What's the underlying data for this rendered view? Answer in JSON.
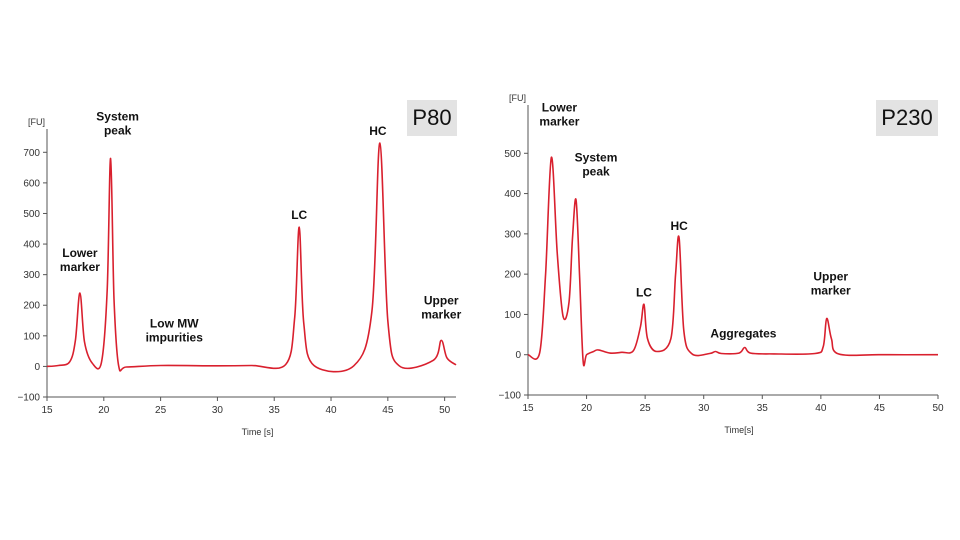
{
  "colors": {
    "trace": "#d9202e",
    "axis": "#555555",
    "tag_bg": "#e3e3e3"
  },
  "chart_data": [
    {
      "type": "line",
      "title": "P80",
      "xlabel": "Time [s]",
      "unit": "[FU]",
      "xlim": [
        15,
        51
      ],
      "ylim": [
        -100,
        750
      ],
      "xticks": [
        15,
        20,
        25,
        30,
        35,
        40,
        45,
        50
      ],
      "yticks": [
        -100,
        0,
        100,
        200,
        300,
        400,
        500,
        600,
        700
      ],
      "baseline": 3,
      "peaks": [
        {
          "x": 17.9,
          "y": 240,
          "w": 0.25
        },
        {
          "x": 20.6,
          "y": 680,
          "w": 0.2
        },
        {
          "x": 37.2,
          "y": 455,
          "w": 0.25
        },
        {
          "x": 44.3,
          "y": 730,
          "w": 0.3
        },
        {
          "x": 49.7,
          "y": 85,
          "w": 0.3
        },
        {
          "x": 52.2,
          "y": 10,
          "w": 0.5
        }
      ],
      "series": [
        {
          "name": "",
          "x": [
            15,
            16,
            17,
            17.5,
            17.9,
            18.3,
            19,
            19.8,
            20.3,
            20.6,
            20.9,
            21.3,
            22,
            25,
            30,
            33,
            36,
            36.8,
            37.2,
            37.6,
            38.5,
            42,
            43.6,
            44.3,
            45,
            46,
            49,
            49.7,
            50.2,
            51
          ],
          "y": [
            0,
            3,
            15,
            85,
            240,
            80,
            10,
            14,
            250,
            680,
            220,
            3,
            -2,
            3,
            2,
            3,
            6,
            160,
            455,
            140,
            3,
            2,
            180,
            730,
            150,
            2,
            20,
            85,
            28,
            5
          ]
        }
      ],
      "annotations": [
        {
          "text": [
            "Lower",
            "marker"
          ],
          "x": 17.9,
          "y": 240
        },
        {
          "text": [
            "System",
            "peak"
          ],
          "x": 20.6,
          "y": 680
        },
        {
          "text": [
            "Low MW",
            "impurities"
          ],
          "x": 26.2,
          "y": 3
        },
        {
          "text": [
            "LC"
          ],
          "x": 37.2,
          "y": 455
        },
        {
          "text": [
            "HC"
          ],
          "x": 44.3,
          "y": 730
        },
        {
          "text": [
            "Upper",
            "marker"
          ],
          "x": 49.7,
          "y": 85
        }
      ]
    },
    {
      "type": "line",
      "title": "P230",
      "xlabel": "Time[s]",
      "unit": "[FU]",
      "xlim": [
        15,
        50
      ],
      "ylim": [
        -100,
        600
      ],
      "xticks": [
        15,
        20,
        25,
        30,
        35,
        40,
        45,
        50
      ],
      "yticks": [
        -100,
        0,
        100,
        200,
        300,
        400,
        500
      ],
      "series": [
        {
          "name": "",
          "x": [
            15,
            16,
            16.5,
            17,
            17.5,
            18,
            18.5,
            18.8,
            19.1,
            19.4,
            19.7,
            20,
            20.6,
            21,
            22,
            23,
            24,
            24.6,
            24.9,
            25.2,
            26,
            27.2,
            27.6,
            27.9,
            28.3,
            29,
            30.5,
            31,
            31.5,
            33,
            33.5,
            34,
            36,
            39.5,
            40.2,
            40.5,
            40.9,
            41.5,
            45,
            50
          ],
          "y": [
            0,
            5,
            200,
            490,
            250,
            95,
            130,
            290,
            385,
            200,
            -15,
            0,
            8,
            12,
            4,
            6,
            10,
            70,
            125,
            40,
            8,
            40,
            200,
            290,
            60,
            2,
            3,
            8,
            3,
            4,
            18,
            4,
            2,
            3,
            20,
            90,
            40,
            2,
            0,
            0
          ]
        }
      ],
      "annotations": [
        {
          "text": [
            "Lower",
            "marker"
          ],
          "x": 17,
          "y": 490
        },
        {
          "text": [
            "System",
            "peak"
          ],
          "x": 19.1,
          "y": 385
        },
        {
          "text": [
            "LC"
          ],
          "x": 24.9,
          "y": 125
        },
        {
          "text": [
            "HC"
          ],
          "x": 27.9,
          "y": 290
        },
        {
          "text": [
            "Aggregates"
          ],
          "x": 31,
          "y": 8
        },
        {
          "text": [
            "Upper",
            "marker"
          ],
          "x": 40.5,
          "y": 90
        }
      ]
    }
  ]
}
